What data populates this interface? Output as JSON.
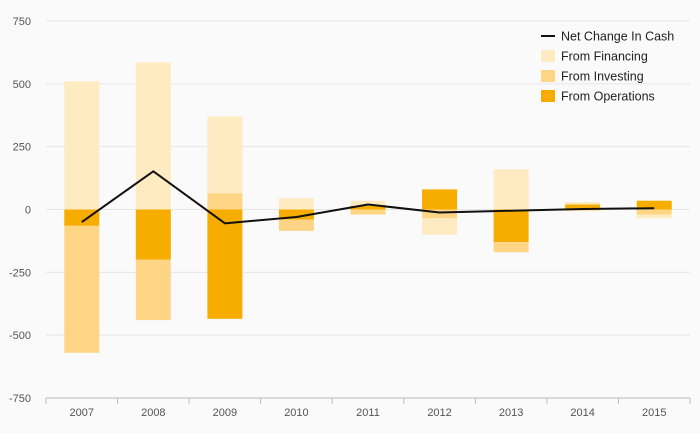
{
  "chart_data": {
    "type": "bar",
    "stacked": true,
    "categories": [
      "2007",
      "2008",
      "2009",
      "2010",
      "2011",
      "2012",
      "2013",
      "2014",
      "2015"
    ],
    "ylim": [
      -750,
      750
    ],
    "yticks": [
      750,
      500,
      250,
      0,
      -250,
      -500,
      -750
    ],
    "grid": true,
    "legend_position": "top-right",
    "series": [
      {
        "name": "From Operations",
        "kind": "bar",
        "color": "#f7ad00",
        "values": [
          -65,
          -200,
          -435,
          -40,
          15,
          80,
          -130,
          20,
          35
        ]
      },
      {
        "name": "From Investing",
        "kind": "bar",
        "color": "#fdd585",
        "values": [
          -505,
          -240,
          65,
          -45,
          -20,
          -35,
          -40,
          -5,
          -20
        ]
      },
      {
        "name": "From Financing",
        "kind": "bar",
        "color": "#feebc1",
        "values": [
          510,
          585,
          305,
          45,
          20,
          -65,
          160,
          10,
          -15
        ]
      },
      {
        "name": "Net Change In Cash",
        "kind": "line",
        "color": "#111111",
        "values": [
          -50,
          152,
          -55,
          -30,
          20,
          -12,
          -5,
          2,
          5
        ]
      }
    ],
    "legend": [
      {
        "name": "Net Change In Cash",
        "swatch": "line",
        "color": "#111111"
      },
      {
        "name": "From Financing",
        "swatch": "box",
        "color": "#feebc1"
      },
      {
        "name": "From Investing",
        "swatch": "box",
        "color": "#fdd585"
      },
      {
        "name": "From Operations",
        "swatch": "box",
        "color": "#f7ad00"
      }
    ]
  }
}
